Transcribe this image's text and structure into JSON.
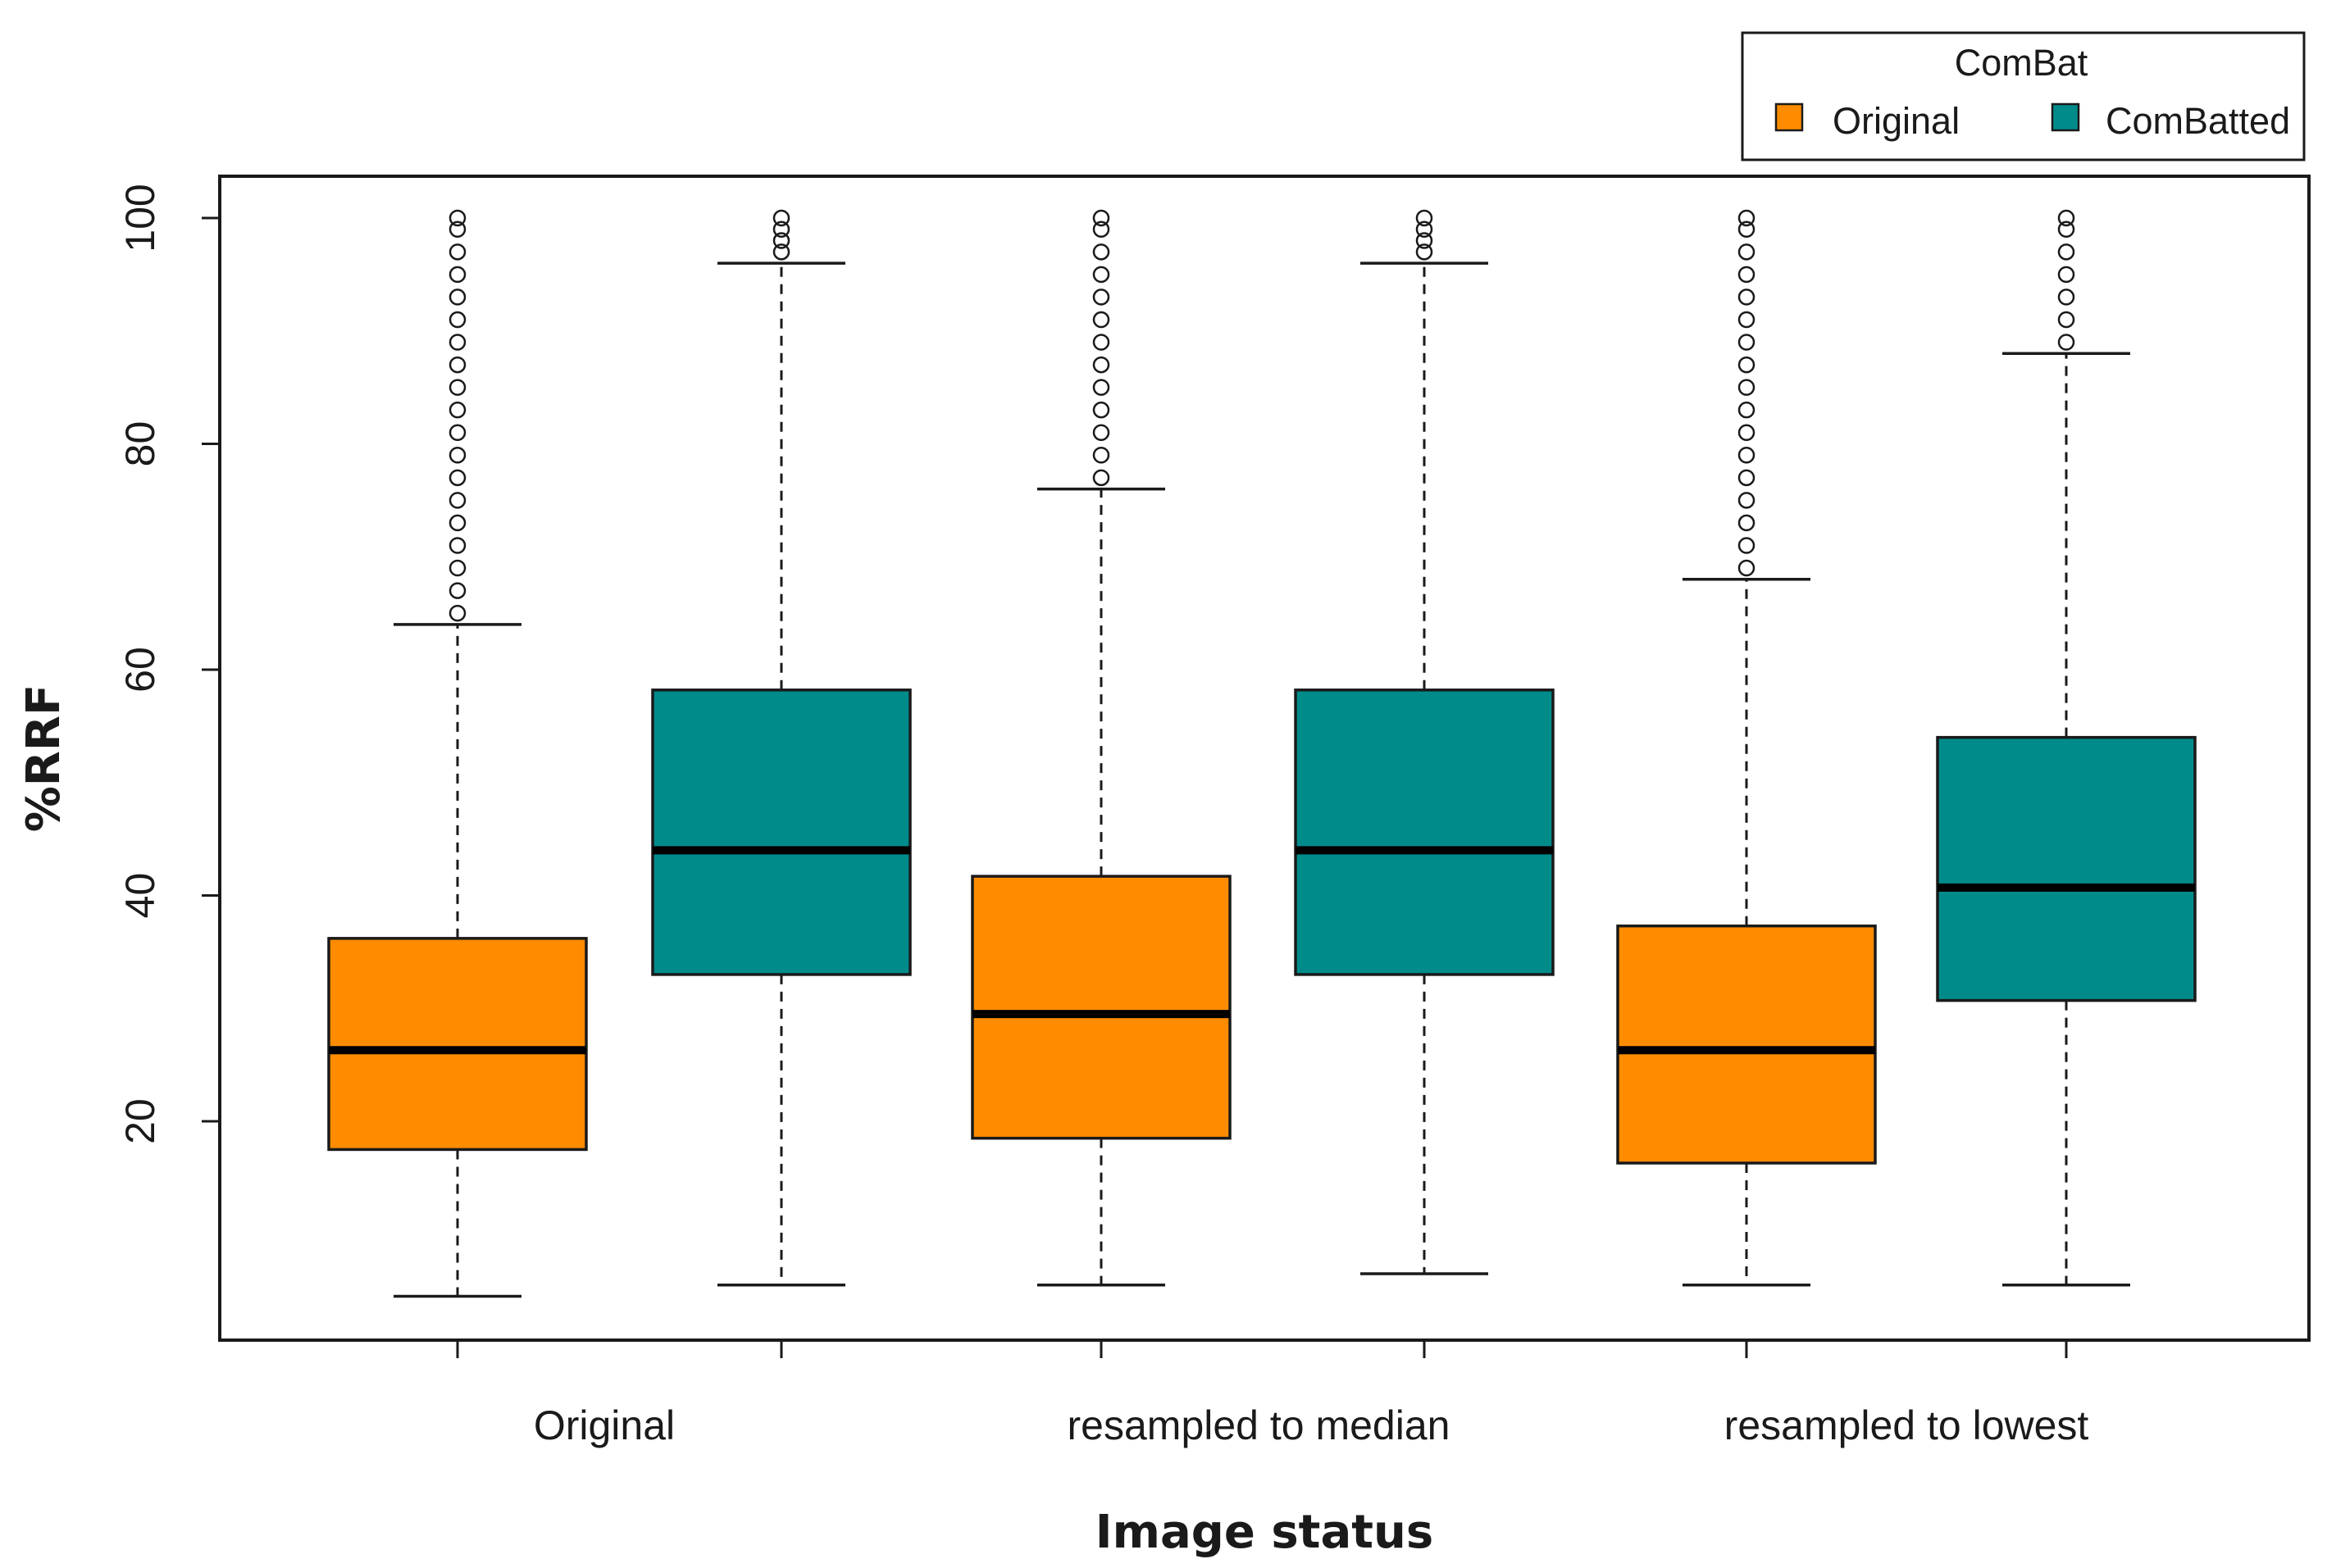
{
  "chart_data": {
    "type": "boxplot",
    "title": "",
    "xlabel": "Image status",
    "ylabel": "%RRF",
    "ylim": [
      0,
      104
    ],
    "yticks": [
      20,
      40,
      60,
      80,
      100
    ],
    "groups": [
      "Original",
      "resampled to median",
      "resampled to lowest"
    ],
    "legend": {
      "title": "ComBat",
      "placement": "top-right",
      "entries": [
        {
          "label": "Original",
          "color": "#FF8C00"
        },
        {
          "label": "ComBatted",
          "color": "#008B8B"
        }
      ]
    },
    "boxes": [
      {
        "group": "Original",
        "series": "Original",
        "whisker_low": 4.5,
        "q1": 17.5,
        "median": 26.3,
        "q3": 36.2,
        "whisker_high": 64,
        "outliers": [
          65,
          67,
          69,
          71,
          73,
          75,
          77,
          79,
          81,
          83,
          85,
          87,
          89,
          91,
          93,
          95,
          97,
          99,
          100
        ]
      },
      {
        "group": "Original",
        "series": "ComBatted",
        "whisker_low": 5.5,
        "q1": 33,
        "median": 44,
        "q3": 58.2,
        "whisker_high": 96,
        "outliers": [
          97,
          98,
          99,
          100
        ]
      },
      {
        "group": "resampled to median",
        "series": "Original",
        "whisker_low": 5.5,
        "q1": 18.5,
        "median": 29.5,
        "q3": 41.7,
        "whisker_high": 76,
        "outliers": [
          77,
          79,
          81,
          83,
          85,
          87,
          89,
          91,
          93,
          95,
          97,
          99,
          100
        ]
      },
      {
        "group": "resampled to median",
        "series": "ComBatted",
        "whisker_low": 6.5,
        "q1": 33,
        "median": 44,
        "q3": 58.2,
        "whisker_high": 96,
        "outliers": [
          97,
          98,
          99,
          100
        ]
      },
      {
        "group": "resampled to lowest",
        "series": "Original",
        "whisker_low": 5.5,
        "q1": 16.3,
        "median": 26.3,
        "q3": 37.3,
        "whisker_high": 68,
        "outliers": [
          69,
          71,
          73,
          75,
          77,
          79,
          81,
          83,
          85,
          87,
          89,
          91,
          93,
          95,
          97,
          99,
          100
        ]
      },
      {
        "group": "resampled to lowest",
        "series": "ComBatted",
        "whisker_low": 5.5,
        "q1": 30.7,
        "median": 40.7,
        "q3": 54,
        "whisker_high": 88,
        "outliers": [
          89,
          91,
          93,
          95,
          97,
          99,
          100
        ]
      }
    ]
  }
}
